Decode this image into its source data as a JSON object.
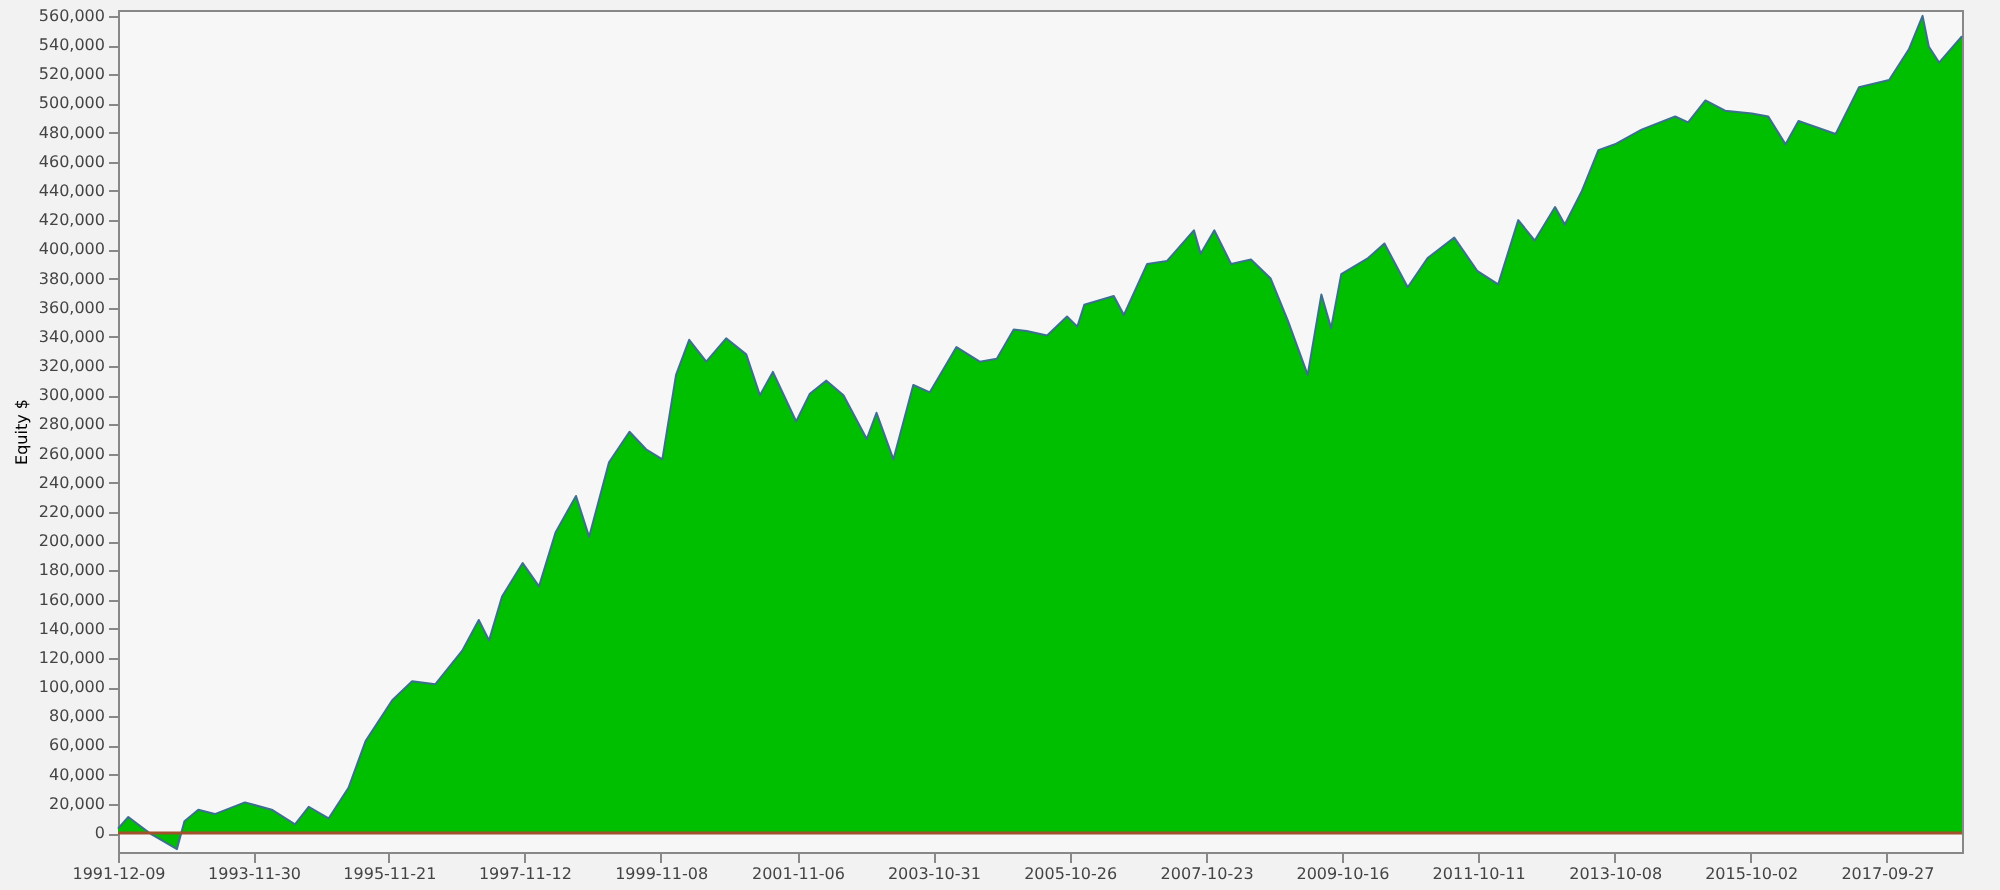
{
  "chart_data": {
    "type": "area",
    "ylabel": "Equity $",
    "grid": false,
    "xlim": [
      "1991-12-09",
      "2018-11-01"
    ],
    "xticks": [
      "1991-12-09",
      "1993-11-30",
      "1995-11-21",
      "1997-11-12",
      "1999-11-08",
      "2001-11-06",
      "2003-10-31",
      "2005-10-26",
      "2007-10-23",
      "2009-10-16",
      "2011-10-11",
      "2013-10-08",
      "2015-10-02",
      "2017-09-27"
    ],
    "ylim": [
      -13000,
      564000
    ],
    "yticks": [
      0,
      {
        "value": 20000,
        "label": "20,000"
      },
      {
        "value": 40000,
        "label": "40,000"
      },
      {
        "value": 60000,
        "label": "60,000"
      },
      {
        "value": 80000,
        "label": "80,000"
      },
      {
        "value": 100000,
        "label": "100,000"
      },
      {
        "value": 120000,
        "label": "120,000"
      },
      {
        "value": 140000,
        "label": "140,000"
      },
      {
        "value": 160000,
        "label": "160,000"
      },
      {
        "value": 180000,
        "label": "180,000"
      },
      {
        "value": 200000,
        "label": "200,000"
      },
      {
        "value": 220000,
        "label": "220,000"
      },
      {
        "value": 240000,
        "label": "240,000"
      },
      {
        "value": 260000,
        "label": "260,000"
      },
      {
        "value": 280000,
        "label": "280,000"
      },
      {
        "value": 300000,
        "label": "300,000"
      },
      {
        "value": 320000,
        "label": "320,000"
      },
      {
        "value": 340000,
        "label": "340,000"
      },
      {
        "value": 360000,
        "label": "360,000"
      },
      {
        "value": 380000,
        "label": "380,000"
      },
      {
        "value": 400000,
        "label": "400,000"
      },
      {
        "value": 420000,
        "label": "420,000"
      },
      {
        "value": 440000,
        "label": "440,000"
      },
      {
        "value": 460000,
        "label": "460,000"
      },
      {
        "value": 480000,
        "label": "480,000"
      },
      {
        "value": 500000,
        "label": "500,000"
      },
      {
        "value": 520000,
        "label": "520,000"
      },
      {
        "value": 540000,
        "label": "540,000"
      },
      {
        "value": 560000,
        "label": "560,000"
      }
    ],
    "ref_lines": [
      {
        "axis": "y",
        "value": 0,
        "color": "#a0522d"
      }
    ],
    "series": [
      {
        "color": "#00bf00",
        "x": [
          "1991-12-09",
          "1992-02-02",
          "1992-03-24",
          "1992-06-05",
          "1992-08-13",
          "1992-10-18",
          "1992-11-27",
          "1993-02-09",
          "1993-05-08",
          "1993-10-15",
          "1994-03-07",
          "1994-07-09",
          "1994-09-20",
          "1995-01-04",
          "1995-04-20",
          "1995-07-20",
          "1995-12-09",
          "1996-03-24",
          "1996-07-26",
          "1996-12-16",
          "1997-03-14",
          "1997-05-08",
          "1997-07-16",
          "1997-11-03",
          "1998-01-29",
          "1998-04-27",
          "1998-08-14",
          "1998-10-23",
          "1999-02-06",
          "1999-05-26",
          "1999-08-22",
          "1999-11-17",
          "2000-01-29",
          "2000-04-08",
          "2000-07-08",
          "2000-10-22",
          "2001-02-06",
          "2001-04-20",
          "2001-06-28",
          "2001-10-30",
          "2002-01-11",
          "2002-04-09",
          "2002-07-09",
          "2002-11-10",
          "2003-01-01",
          "2003-04-01",
          "2003-07-16",
          "2003-10-12",
          "2004-03-02",
          "2004-07-04",
          "2004-10-03",
          "2005-01-01",
          "2005-03-11",
          "2005-06-28",
          "2005-10-12",
          "2005-12-06",
          "2006-01-12",
          "2006-06-18",
          "2006-08-11",
          "2006-12-13",
          "2007-03-29",
          "2007-08-19",
          "2007-09-24",
          "2007-12-06",
          "2008-03-04",
          "2008-06-18",
          "2008-10-01",
          "2009-01-01",
          "2009-04-16",
          "2009-06-28",
          "2009-08-19",
          "2009-10-12",
          "2010-03-04",
          "2010-05-30",
          "2010-10-01",
          "2011-01-15",
          "2011-06-06",
          "2011-10-08",
          "2012-01-26",
          "2012-05-12",
          "2012-08-08",
          "2012-11-24",
          "2013-01-15",
          "2013-04-16",
          "2013-07-13",
          "2013-10-09",
          "2014-02-28",
          "2014-08-26",
          "2014-11-03",
          "2015-02-03",
          "2015-05-19",
          "2015-10-09",
          "2016-01-04",
          "2016-04-05",
          "2016-06-13",
          "2016-12-28",
          "2017-05-01",
          "2017-10-09",
          "2018-01-22",
          "2018-04-05",
          "2018-05-08",
          "2018-07-02",
          "2018-11-01"
        ],
        "values": [
          3000,
          11000,
          6000,
          -1000,
          -6000,
          -11000,
          8000,
          16000,
          13000,
          21000,
          16000,
          6000,
          18000,
          10000,
          31000,
          63000,
          91000,
          104000,
          102000,
          125000,
          146000,
          132000,
          162000,
          185000,
          169000,
          206000,
          231000,
          203000,
          254000,
          275000,
          263000,
          256000,
          314000,
          338000,
          323000,
          339000,
          328000,
          300000,
          316000,
          282000,
          301000,
          310000,
          300000,
          270000,
          288000,
          256000,
          307000,
          302000,
          333000,
          323000,
          325000,
          345000,
          344000,
          341000,
          354000,
          347000,
          362000,
          368000,
          355000,
          390000,
          392000,
          413000,
          397000,
          413000,
          390000,
          393000,
          380000,
          351000,
          314000,
          369000,
          346000,
          383000,
          394000,
          404000,
          374000,
          394000,
          408000,
          385000,
          376000,
          420000,
          406000,
          429000,
          417000,
          440000,
          468000,
          472000,
          482000,
          491000,
          487000,
          502000,
          495000,
          493000,
          491000,
          472000,
          488000,
          479000,
          511000,
          516000,
          537000,
          560000,
          539000,
          528000,
          546000
        ]
      }
    ]
  }
}
